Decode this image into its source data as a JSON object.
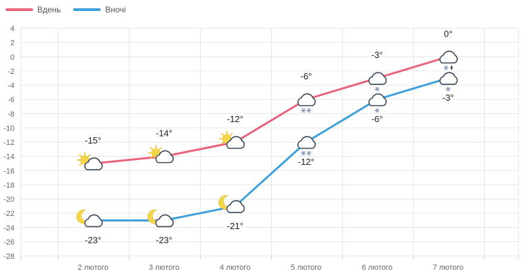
{
  "chart_data": {
    "type": "line",
    "categories": [
      "2 лютого",
      "3 лютого",
      "4 лютого",
      "5 лютого",
      "6 лютого",
      "7 лютого"
    ],
    "ylim": [
      -28,
      4
    ],
    "yticks": [
      "4",
      "2",
      "0",
      "-2",
      "-4",
      "-6",
      "-8",
      "-10",
      "-12",
      "-14",
      "-16",
      "-18",
      "-20",
      "-22",
      "-24",
      "-26",
      "-28"
    ],
    "grid": true,
    "legend_position": "top-left",
    "series": [
      {
        "name": "Вдень",
        "color": "#e8647d",
        "values": [
          -15,
          -14,
          -12,
          -6,
          -3,
          0
        ],
        "labels": [
          "-15°",
          "-14°",
          "-12°",
          "-6°",
          "-3°",
          "0°"
        ],
        "label_position": "above",
        "icons": [
          "sun-cloud-icon",
          "sun-cloud-icon",
          "sun-cloud-icon",
          "cloud-snow-icon",
          "cloud-light-snow-icon",
          "cloud-sleet-icon"
        ]
      },
      {
        "name": "Вночі",
        "color": "#3fa0db",
        "values": [
          -23,
          -23,
          -21,
          -12,
          -6,
          -3
        ],
        "labels": [
          "-23°",
          "-23°",
          "-21°",
          "-12°",
          "-6°",
          "-3°"
        ],
        "label_position": "below",
        "icons": [
          "moon-cloud-icon",
          "moon-cloud-icon",
          "moon-cloud-icon",
          "cloud-snow-icon",
          "cloud-light-snow-icon",
          "cloud-light-snow-icon"
        ]
      }
    ]
  }
}
